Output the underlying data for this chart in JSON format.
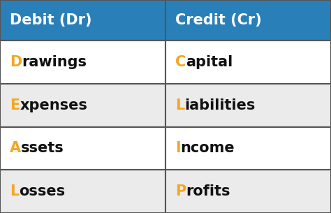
{
  "header_bg_color": "#2980B9",
  "header_text_color": "#FFFFFF",
  "header_left": "Debit (Dr)",
  "header_right": "Credit (Cr)",
  "row_bg_colors": [
    "#FFFFFF",
    "#EBEBEB",
    "#FFFFFF",
    "#EBEBEB"
  ],
  "debit_rows": [
    {
      "letter": "D",
      "rest": "rawings"
    },
    {
      "letter": "E",
      "rest": "xpenses"
    },
    {
      "letter": "A",
      "rest": "ssets"
    },
    {
      "letter": "L",
      "rest": "osses"
    }
  ],
  "credit_rows": [
    {
      "letter": "C",
      "rest": "apital"
    },
    {
      "letter": "L",
      "rest": "iabilities"
    },
    {
      "letter": "I",
      "rest": "ncome"
    },
    {
      "letter": "P",
      "rest": "rofits"
    }
  ],
  "accent_color": "#F5A623",
  "text_color": "#111111",
  "border_color": "#555555",
  "header_font_size": 15,
  "row_font_size": 15,
  "fig_width": 4.74,
  "fig_height": 3.05,
  "dpi": 100
}
